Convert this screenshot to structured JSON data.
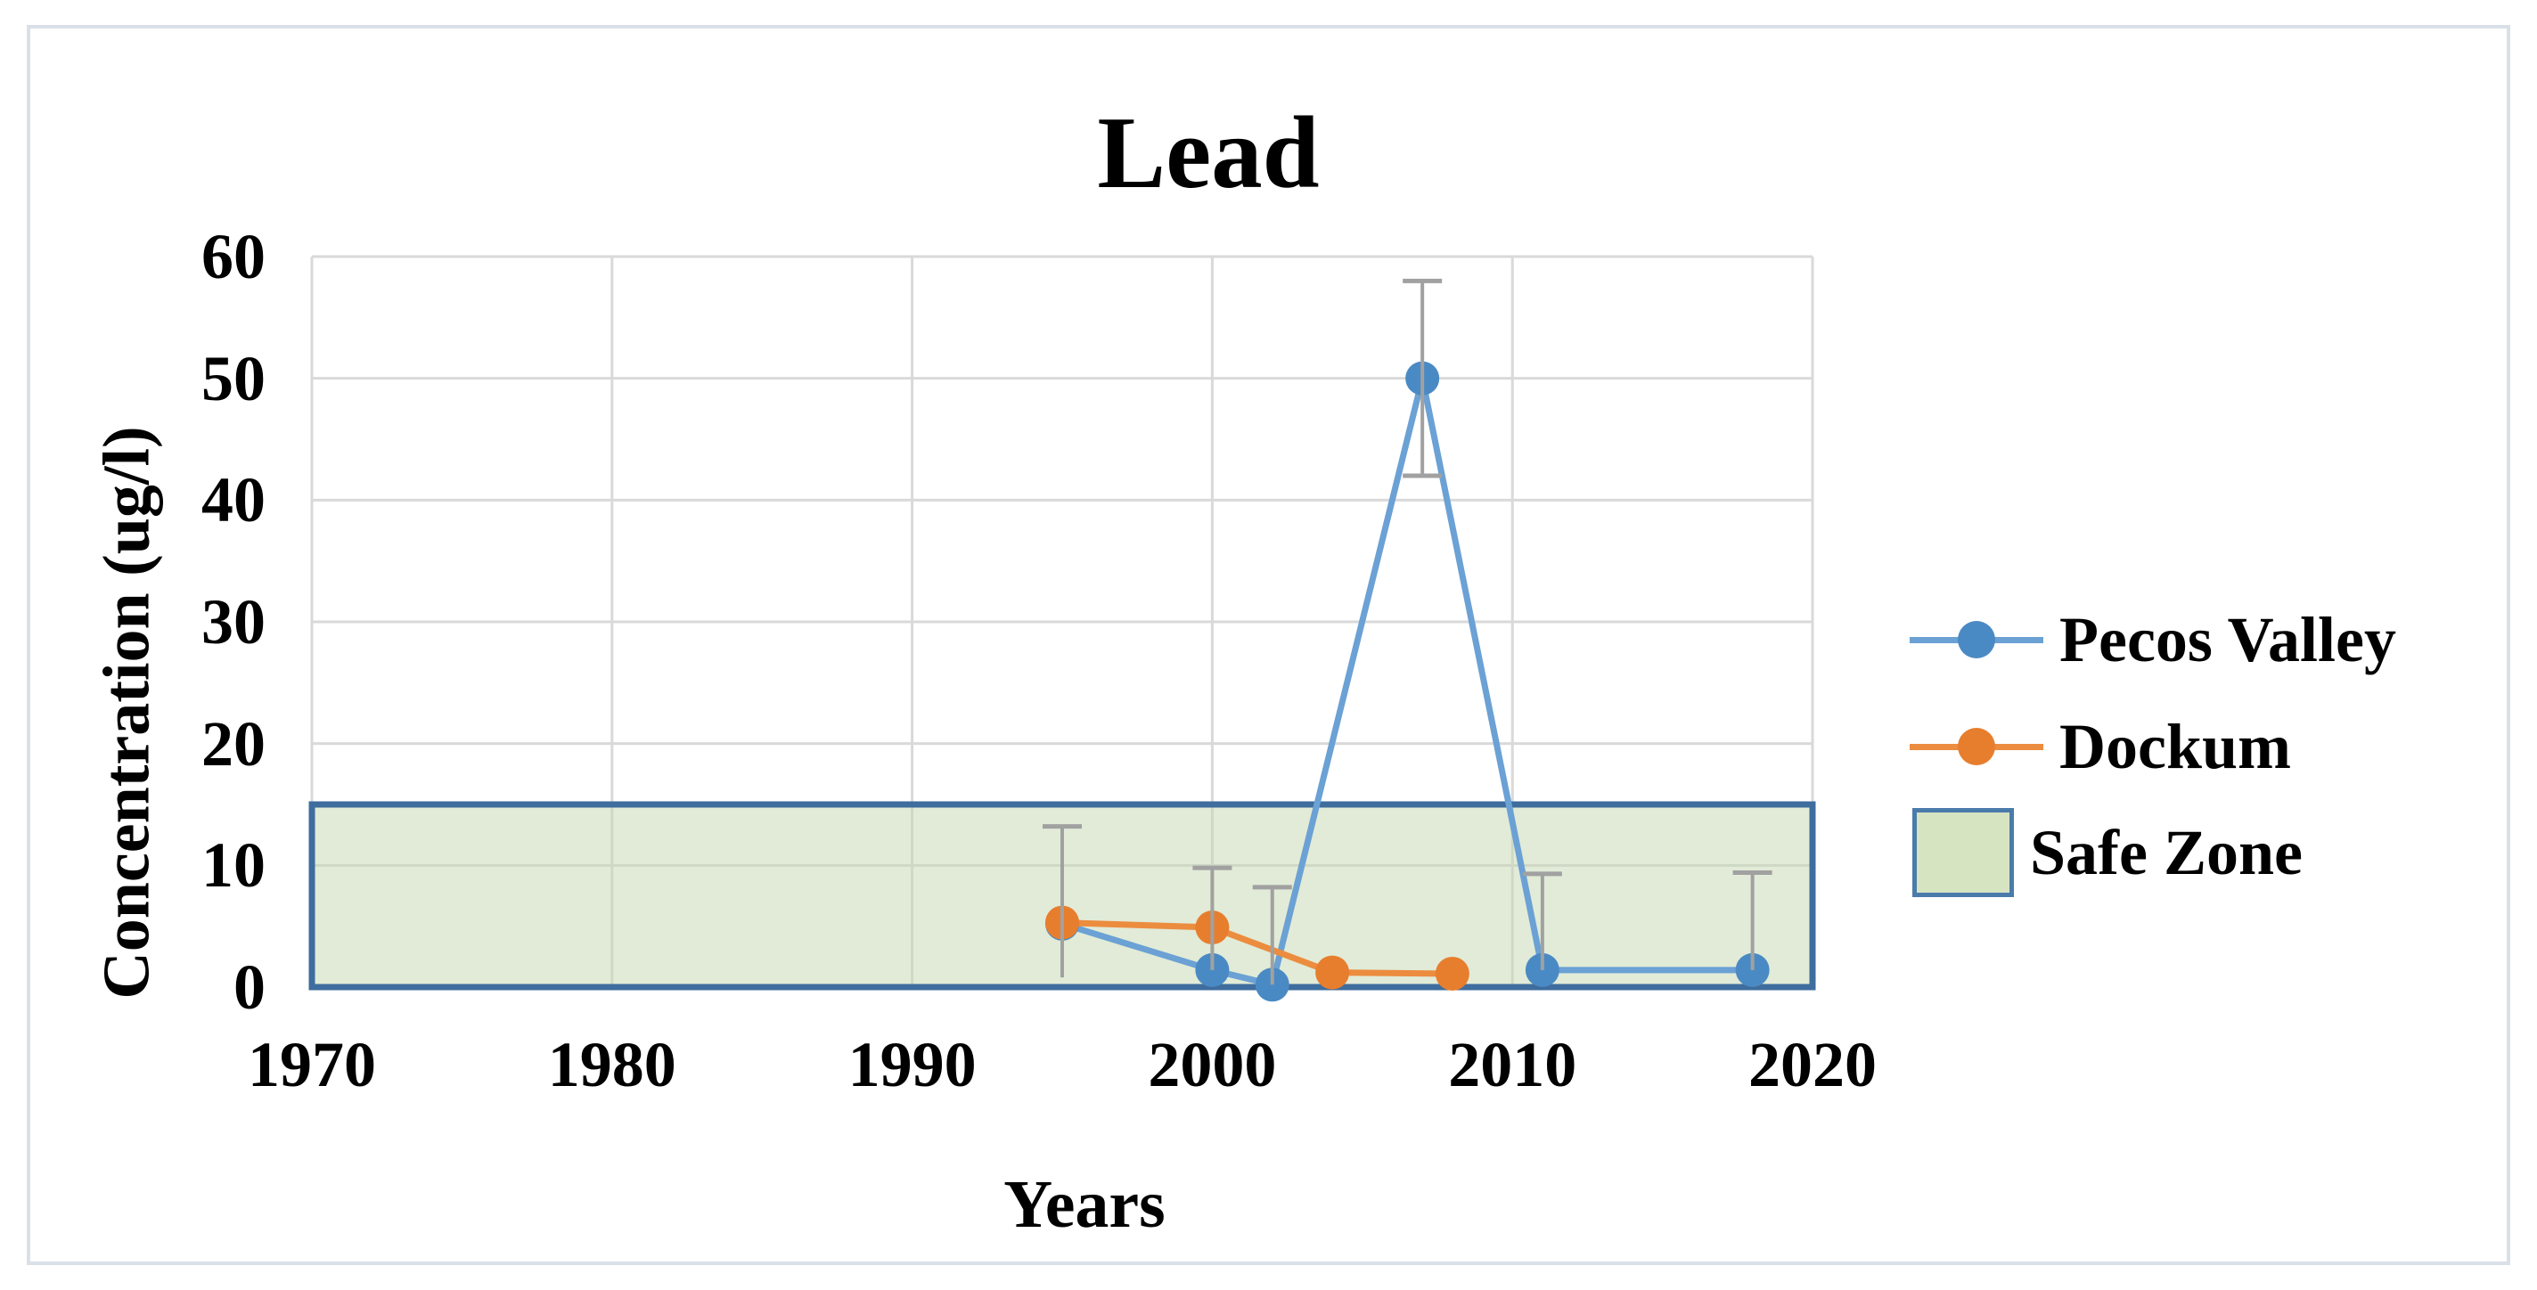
{
  "chart_data": {
    "type": "line",
    "title": "Lead",
    "xlabel": "Years",
    "ylabel": "Concentration (ug/l)",
    "xlim": [
      1970,
      2020
    ],
    "ylim": [
      0,
      60
    ],
    "x_ticks": [
      1970,
      1980,
      1990,
      2000,
      2010,
      2020
    ],
    "y_ticks": [
      0,
      10,
      20,
      30,
      40,
      50,
      60
    ],
    "grid": true,
    "legend_position": "right",
    "series": [
      {
        "name": "Pecos Valley",
        "line_color": "#6ba1d4",
        "marker_color": "#4a8ac4",
        "points": [
          [
            1995,
            5.2
          ],
          [
            2000,
            1.4
          ],
          [
            2002,
            0.2
          ],
          [
            2007,
            50
          ],
          [
            2011,
            1.4
          ],
          [
            2018,
            1.4
          ]
        ]
      },
      {
        "name": "Dockum",
        "line_color": "#ec8c3f",
        "marker_color": "#e77e2e",
        "points": [
          [
            1995,
            5.3
          ],
          [
            2000,
            4.9
          ],
          [
            2004,
            1.2
          ],
          [
            2008,
            1.1
          ]
        ]
      }
    ],
    "error_bars": [
      {
        "x": 1995,
        "low": 0.8,
        "high": 13.2,
        "cap_low": false,
        "cap_high": true
      },
      {
        "x": 2000,
        "low": 1.4,
        "high": 9.8,
        "cap_low": false,
        "cap_high": true
      },
      {
        "x": 2002,
        "low": 0.2,
        "high": 8.2,
        "cap_low": false,
        "cap_high": true
      },
      {
        "x": 2007,
        "low": 42,
        "high": 58,
        "cap_low": true,
        "cap_high": true
      },
      {
        "x": 2011,
        "low": 1.4,
        "high": 9.3,
        "cap_low": false,
        "cap_high": true
      },
      {
        "x": 2018,
        "low": 1.4,
        "high": 9.4,
        "cap_low": false,
        "cap_high": true
      }
    ],
    "safe_zone": {
      "label": "Safe Zone",
      "ymin": 0,
      "ymax": 15,
      "fill": "#c3d7af",
      "fill_opacity": 0.5,
      "border": "#3e6d9e",
      "legend_fill": "#d7e4c2",
      "legend_border": "#4a7bab"
    },
    "colors": {
      "gridline": "#d9d9d9",
      "error_bar": "#a1a1a1",
      "canvas_border": "#dae0e8",
      "text": "#000000"
    }
  }
}
